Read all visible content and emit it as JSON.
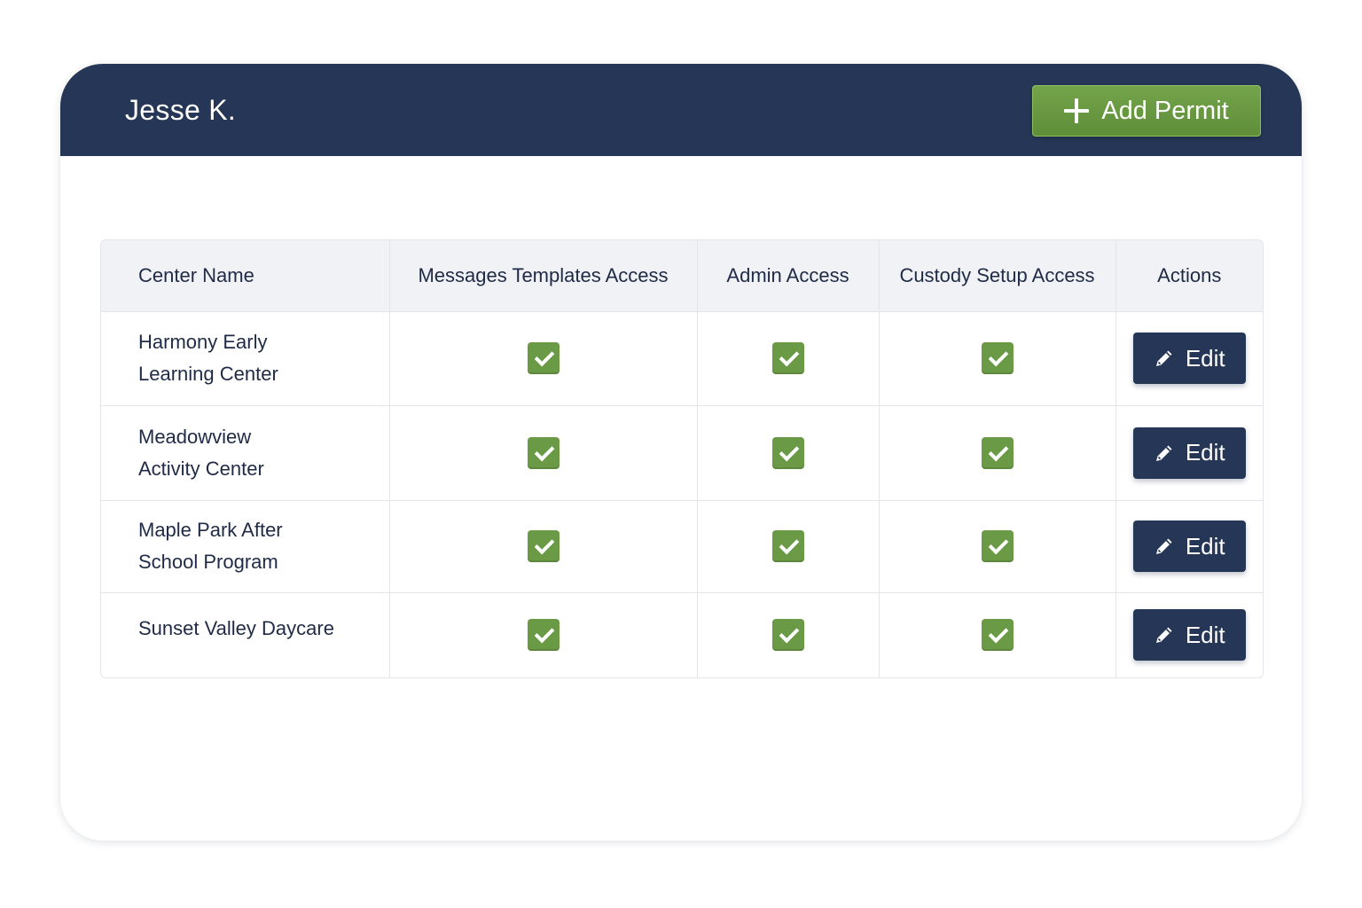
{
  "header": {
    "user_name": "Jesse K.",
    "add_button_label": "Add Permit"
  },
  "table": {
    "columns": [
      "Center Name",
      "Messages Templates Access",
      "Admin Access",
      "Custody Setup Access",
      "Actions"
    ],
    "rows": [
      {
        "center_line1": "Harmony Early",
        "center_line2": "Learning Center",
        "messages_templates": true,
        "admin": true,
        "custody_setup": true,
        "action_label": "Edit"
      },
      {
        "center_line1": "Meadowview",
        "center_line2": "Activity Center",
        "messages_templates": true,
        "admin": true,
        "custody_setup": true,
        "action_label": "Edit"
      },
      {
        "center_line1": "Maple Park After",
        "center_line2": "School Program",
        "messages_templates": true,
        "admin": true,
        "custody_setup": true,
        "action_label": "Edit"
      },
      {
        "center_line1": "Sunset Valley Daycare",
        "center_line2": "",
        "messages_templates": true,
        "admin": true,
        "custody_setup": true,
        "action_label": "Edit"
      }
    ]
  },
  "colors": {
    "header_bg": "#263656",
    "accent_green": "#6a9a45",
    "edit_button_bg": "#263656"
  },
  "icons": {
    "add": "plus-icon",
    "edit": "pencil-icon",
    "checked": "checkbox-checked-icon"
  }
}
